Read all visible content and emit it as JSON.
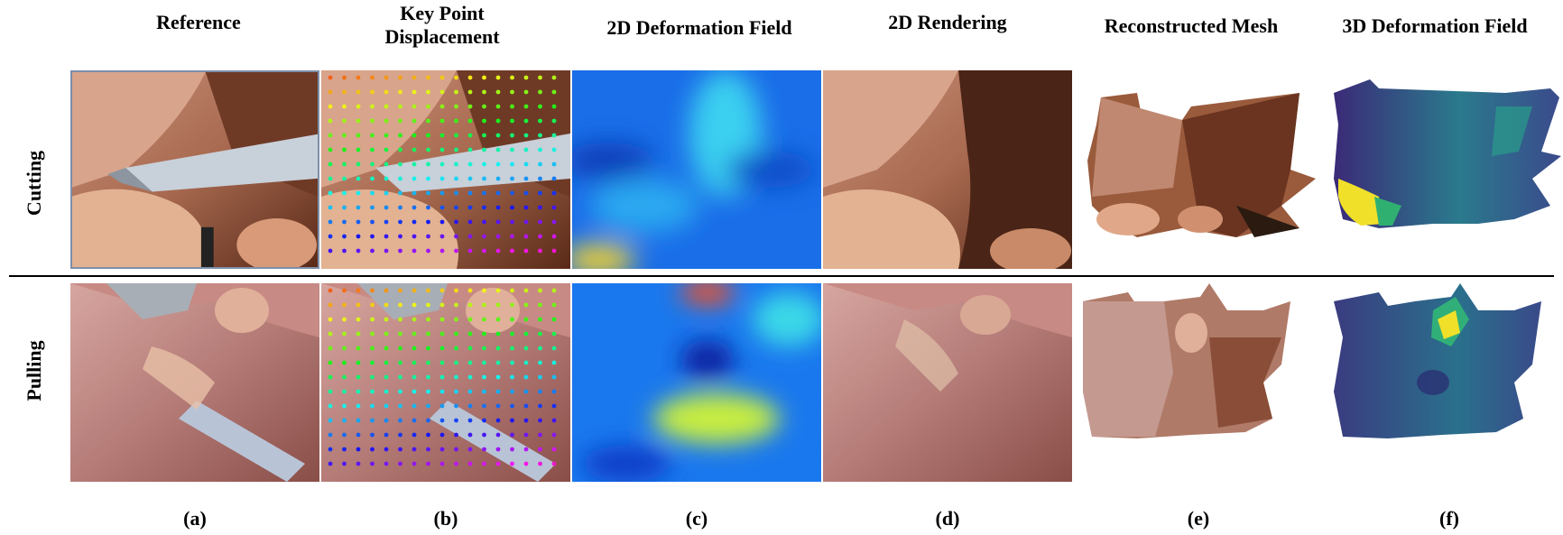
{
  "figure": {
    "column_titles": [
      {
        "line1": "Reference",
        "line2": ""
      },
      {
        "line1": "Key Point",
        "line2": "Displacement"
      },
      {
        "line1": "2D Deformation Field",
        "line2": ""
      },
      {
        "line1": "2D Rendering",
        "line2": ""
      },
      {
        "line1": "Reconstructed Mesh",
        "line2": ""
      },
      {
        "line1": "3D Deformation Field",
        "line2": ""
      }
    ],
    "row_labels": [
      "Cutting",
      "Pulling"
    ],
    "subfigure_labels": [
      "(a)",
      "(b)",
      "(c)",
      "(d)",
      "(e)",
      "(f)"
    ]
  },
  "colors": {
    "tissue_light": "#d9a892",
    "tissue_dark": "#6b3a24",
    "instrument": "#b8c4d2",
    "jet_low": "#0a3cd8",
    "jet_mid": "#27c8f0",
    "jet_high": "#f2e61e",
    "viridis_low": "#3b2a78",
    "viridis_mid": "#2a8c8a",
    "viridis_high": "#f3e52a"
  }
}
